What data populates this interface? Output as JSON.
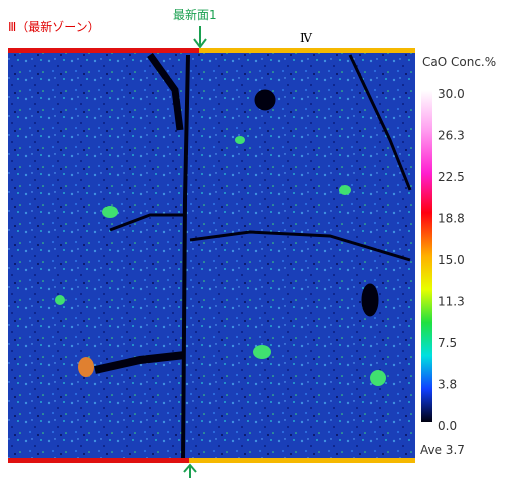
{
  "labels": {
    "zone3": "Ⅲ（最新ゾーン）",
    "surface": "最新面1",
    "zone4": "Ⅳ"
  },
  "colorbar": {
    "title": "CaO Conc.%",
    "ticks": [
      "30.0",
      "26.3",
      "22.5",
      "18.8",
      "15.0",
      "11.3",
      "7.5",
      "3.8",
      "0.0"
    ],
    "average": "Ave 3.7"
  }
}
